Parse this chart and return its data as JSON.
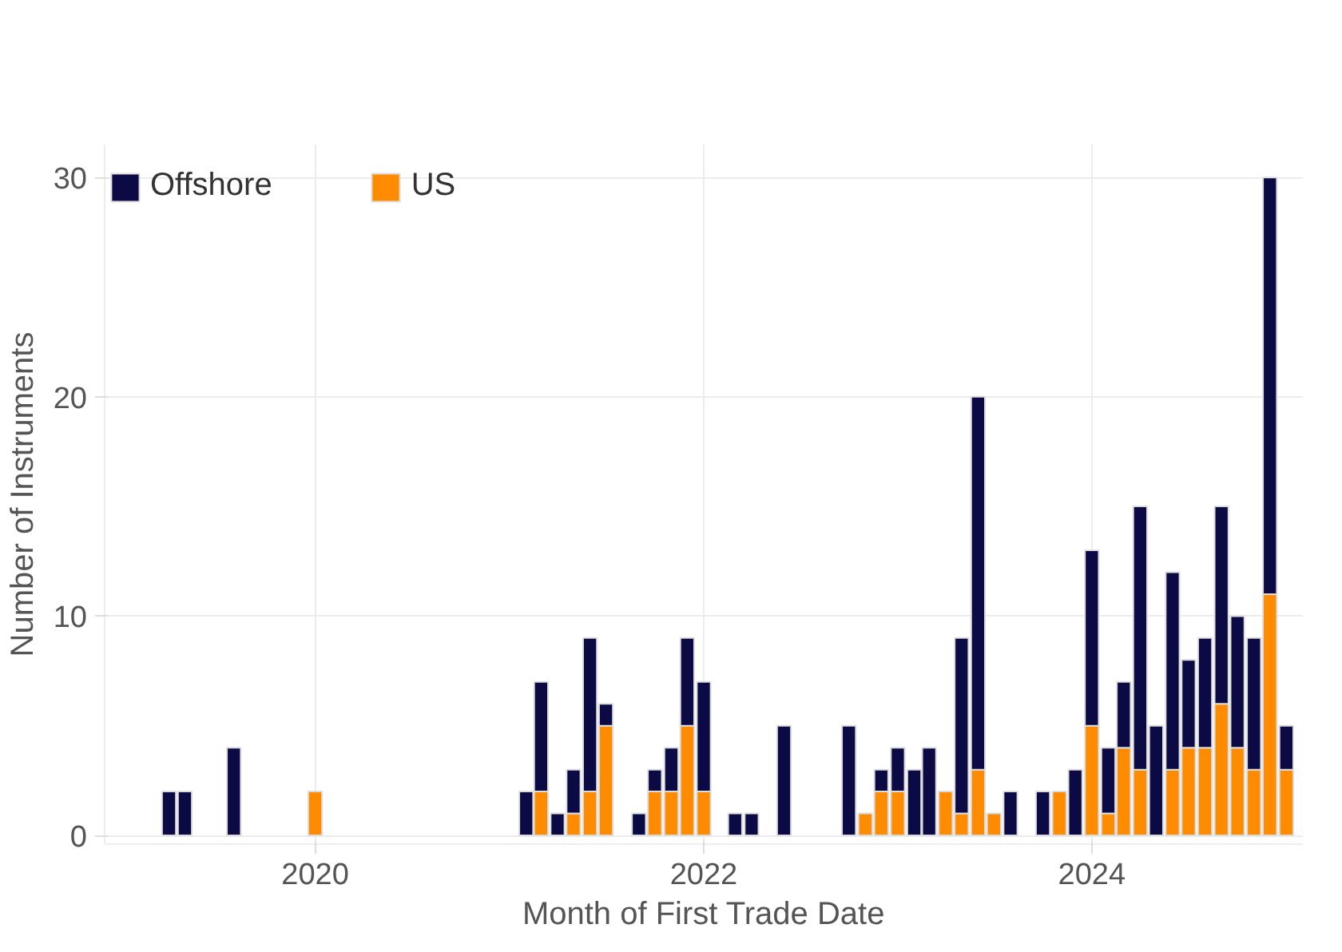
{
  "chart_data": {
    "type": "bar",
    "stacked": true,
    "xlabel": "Month of First Trade Date",
    "ylabel": "Number of Instruments",
    "x": [
      "2019-04",
      "2019-05",
      "2019-08",
      "2020-01",
      "2021-02",
      "2021-03",
      "2021-04",
      "2021-05",
      "2021-06",
      "2021-07",
      "2021-09",
      "2021-10",
      "2021-11",
      "2021-12",
      "2022-01",
      "2022-03",
      "2022-04",
      "2022-06",
      "2022-10",
      "2022-11",
      "2022-12",
      "2023-01",
      "2023-02",
      "2023-03",
      "2023-04",
      "2023-05",
      "2023-06",
      "2023-07",
      "2023-08",
      "2023-10",
      "2023-11",
      "2023-12",
      "2024-01",
      "2024-02",
      "2024-03",
      "2024-04",
      "2024-05",
      "2024-06",
      "2024-07",
      "2024-08",
      "2024-09",
      "2024-10",
      "2024-11",
      "2024-12",
      "2025-01"
    ],
    "series": [
      {
        "name": "US",
        "color": "#ff8c00",
        "values": [
          null,
          null,
          null,
          2,
          null,
          2,
          null,
          1,
          2,
          5,
          null,
          2,
          2,
          5,
          2,
          null,
          null,
          null,
          null,
          1,
          2,
          2,
          null,
          null,
          2,
          1,
          3,
          1,
          null,
          null,
          2,
          null,
          5,
          1,
          4,
          3,
          null,
          3,
          4,
          4,
          6,
          4,
          3,
          11,
          3
        ]
      },
      {
        "name": "Offshore",
        "color": "#0c0a45",
        "values": [
          2,
          2,
          4,
          null,
          2,
          5,
          1,
          2,
          7,
          1,
          1,
          1,
          2,
          4,
          5,
          1,
          1,
          5,
          5,
          null,
          1,
          2,
          3,
          4,
          null,
          8,
          17,
          null,
          2,
          2,
          null,
          3,
          8,
          3,
          3,
          12,
          5,
          9,
          4,
          5,
          9,
          6,
          6,
          19,
          2
        ]
      }
    ],
    "xlim": [
      "2018-12",
      "2025-02"
    ],
    "xticks": [
      "2020",
      "2022",
      "2024"
    ],
    "ylim": [
      -0.4,
      31.5
    ],
    "yticks": [
      0,
      10,
      20,
      30
    ],
    "grid": true,
    "legend": "top left"
  }
}
